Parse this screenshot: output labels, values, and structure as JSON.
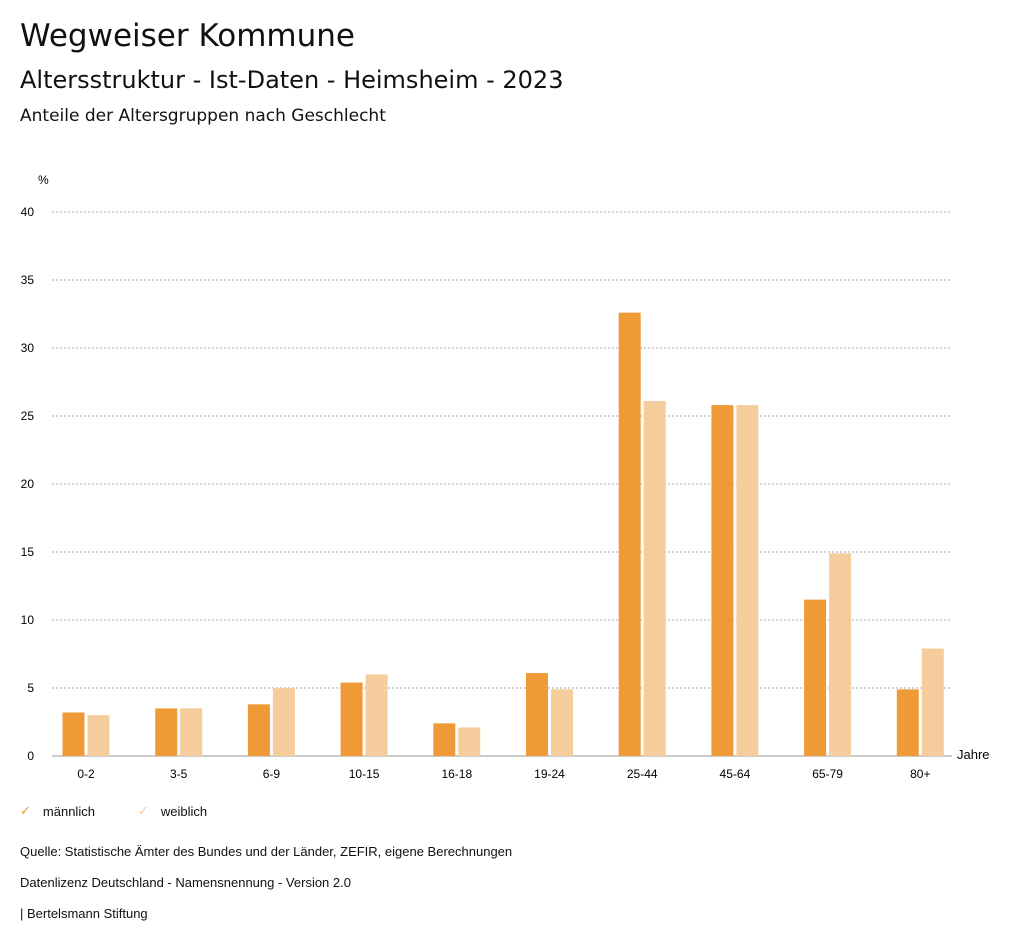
{
  "header": {
    "title": "Wegweiser Kommune",
    "subtitle": "Altersstruktur - Ist-Daten - Heimsheim - 2023",
    "chart_title": "Anteile der Altersgruppen nach Geschlecht"
  },
  "chart_data": {
    "type": "bar",
    "title": "Anteile der Altersgruppen nach Geschlecht",
    "ylabel": "%",
    "xlabel": "Jahre",
    "ylim": [
      0,
      40
    ],
    "yticks": [
      0,
      5,
      10,
      15,
      20,
      25,
      30,
      35,
      40
    ],
    "categories": [
      "0-2",
      "3-5",
      "6-9",
      "10-15",
      "16-18",
      "19-24",
      "25-44",
      "45-64",
      "65-79",
      "80+"
    ],
    "series": [
      {
        "name": "männlich",
        "color": "#EF9A36",
        "values": [
          3.2,
          3.5,
          3.8,
          5.4,
          2.4,
          6.1,
          32.6,
          25.8,
          11.5,
          4.9
        ]
      },
      {
        "name": "weiblich",
        "color": "#F5CC9B",
        "values": [
          3.0,
          3.5,
          5.0,
          6.0,
          2.1,
          4.9,
          26.1,
          25.8,
          14.9,
          7.9
        ]
      }
    ],
    "legend": "bottom-left",
    "grid": true
  },
  "footer": {
    "source": "Quelle: Statistische Ämter des Bundes und der Länder, ZEFIR, eigene Berechnungen",
    "license": "Datenlizenz Deutschland - Namensnennung - Version 2.0",
    "brand": "| Bertelsmann Stiftung"
  }
}
